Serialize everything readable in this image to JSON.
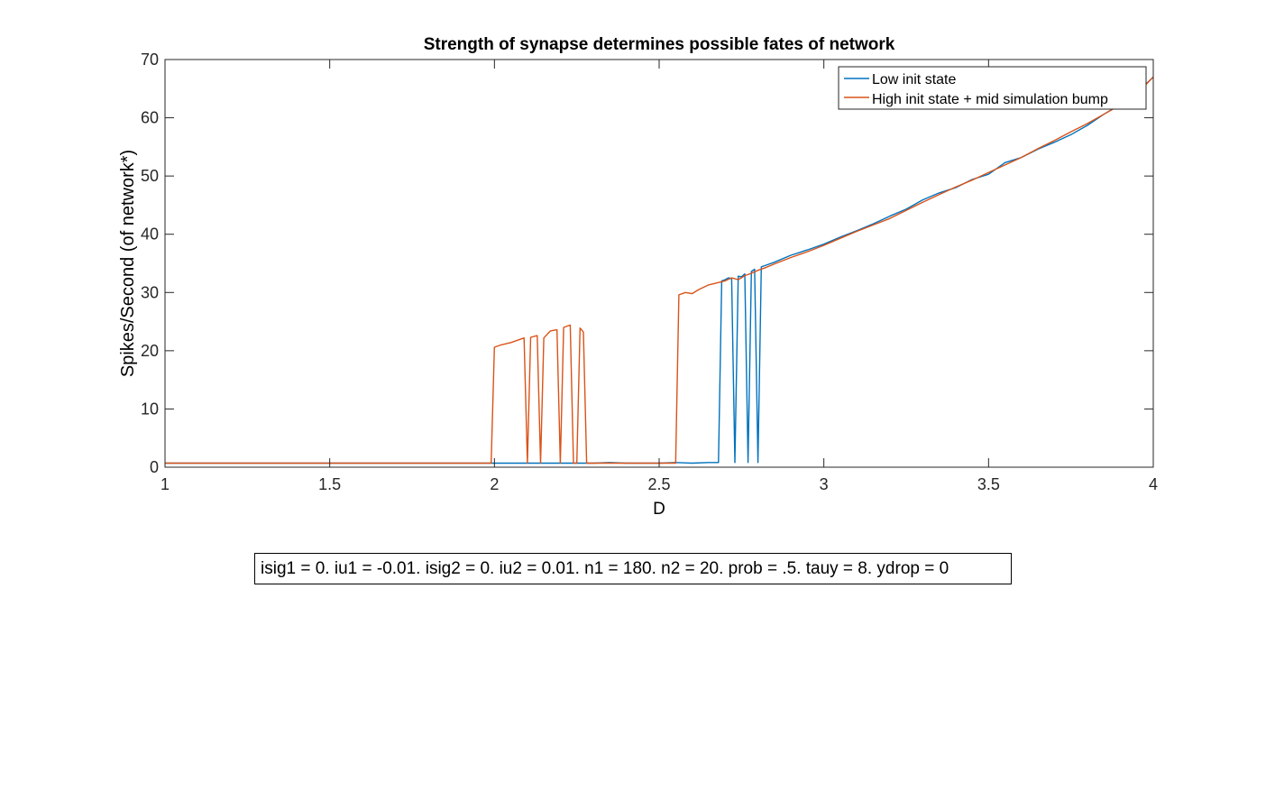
{
  "chart_data": {
    "type": "line",
    "title": "Strength of synapse determines possible fates of network",
    "xlabel": "D",
    "ylabel": "Spikes/Second (of network*)",
    "xlim": [
      1,
      4
    ],
    "ylim": [
      0,
      70
    ],
    "xticks": [
      1,
      1.5,
      2,
      2.5,
      3,
      3.5,
      4
    ],
    "xtick_labels": [
      "1",
      "1.5",
      "2",
      "2.5",
      "3",
      "3.5",
      "4"
    ],
    "yticks": [
      0,
      10,
      20,
      30,
      40,
      50,
      60,
      70
    ],
    "ytick_labels": [
      "0",
      "10",
      "20",
      "30",
      "40",
      "50",
      "60",
      "70"
    ],
    "grid": false,
    "legend_position": "top-right",
    "series": [
      {
        "name": "Low init state",
        "color": "#0072BD",
        "x": [
          1.0,
          1.5,
          2.0,
          2.3,
          2.35,
          2.4,
          2.5,
          2.55,
          2.6,
          2.65,
          2.68,
          2.69,
          2.7,
          2.71,
          2.72,
          2.73,
          2.74,
          2.75,
          2.76,
          2.77,
          2.78,
          2.79,
          2.8,
          2.81,
          2.82,
          2.85,
          2.9,
          2.95,
          3.0,
          3.05,
          3.1,
          3.15,
          3.2,
          3.25,
          3.3,
          3.35,
          3.4,
          3.45,
          3.5,
          3.55,
          3.6,
          3.65,
          3.7,
          3.75,
          3.8,
          3.85,
          3.9,
          3.95,
          4.0
        ],
        "y": [
          0.7,
          0.7,
          0.7,
          0.7,
          0.8,
          0.7,
          0.7,
          0.8,
          0.7,
          0.8,
          0.8,
          32,
          32.2,
          32.5,
          32.4,
          0.8,
          32.8,
          32.7,
          33.2,
          0.8,
          33.6,
          34.0,
          0.8,
          34.4,
          34.6,
          35.2,
          36.4,
          37.3,
          38.3,
          39.5,
          40.6,
          41.8,
          43.1,
          44.3,
          45.9,
          47.1,
          48.0,
          49.4,
          50.3,
          52.3,
          53.2,
          54.6,
          55.8,
          57.1,
          58.7,
          60.6,
          62.3,
          64.3,
          67.0
        ]
      },
      {
        "name": "High init state + mid simulation bump",
        "color": "#D95319",
        "x": [
          1.0,
          1.5,
          1.99,
          2.0,
          2.02,
          2.05,
          2.09,
          2.1,
          2.11,
          2.13,
          2.14,
          2.15,
          2.17,
          2.19,
          2.2,
          2.21,
          2.23,
          2.24,
          2.25,
          2.26,
          2.27,
          2.28,
          2.29,
          2.3,
          2.35,
          2.4,
          2.5,
          2.55,
          2.56,
          2.58,
          2.6,
          2.62,
          2.65,
          2.7,
          2.72,
          2.74,
          2.76,
          2.78,
          2.8,
          2.82,
          2.85,
          2.9,
          2.95,
          3.0,
          3.05,
          3.1,
          3.15,
          3.2,
          3.25,
          3.3,
          3.35,
          3.4,
          3.45,
          3.5,
          3.55,
          3.6,
          3.65,
          3.7,
          3.75,
          3.8,
          3.85,
          3.9,
          3.95,
          4.0
        ],
        "y": [
          0.7,
          0.7,
          0.7,
          20.6,
          21.0,
          21.4,
          22.2,
          0.7,
          22.3,
          22.6,
          0.7,
          22.2,
          23.4,
          23.6,
          0.7,
          24.0,
          24.4,
          0.7,
          0.7,
          23.9,
          23.2,
          0.7,
          0.7,
          0.7,
          0.7,
          0.7,
          0.7,
          0.7,
          29.6,
          30.0,
          29.8,
          30.5,
          31.3,
          32.0,
          32.5,
          32.2,
          32.9,
          33.3,
          33.8,
          34.2,
          34.9,
          36.0,
          37.0,
          38.1,
          39.3,
          40.5,
          41.6,
          42.7,
          44.1,
          45.5,
          46.8,
          48.1,
          49.3,
          50.6,
          51.9,
          53.2,
          54.7,
          56.1,
          57.6,
          59.0,
          60.6,
          62.2,
          64.1,
          67.0
        ]
      }
    ]
  },
  "annotation_box": {
    "text": "isig1 = 0. iu1 = -0.01. isig2 = 0. iu2 = 0.01. n1 = 180. n2 = 20. prob = .5. tauy = 8. ydrop = 0"
  }
}
